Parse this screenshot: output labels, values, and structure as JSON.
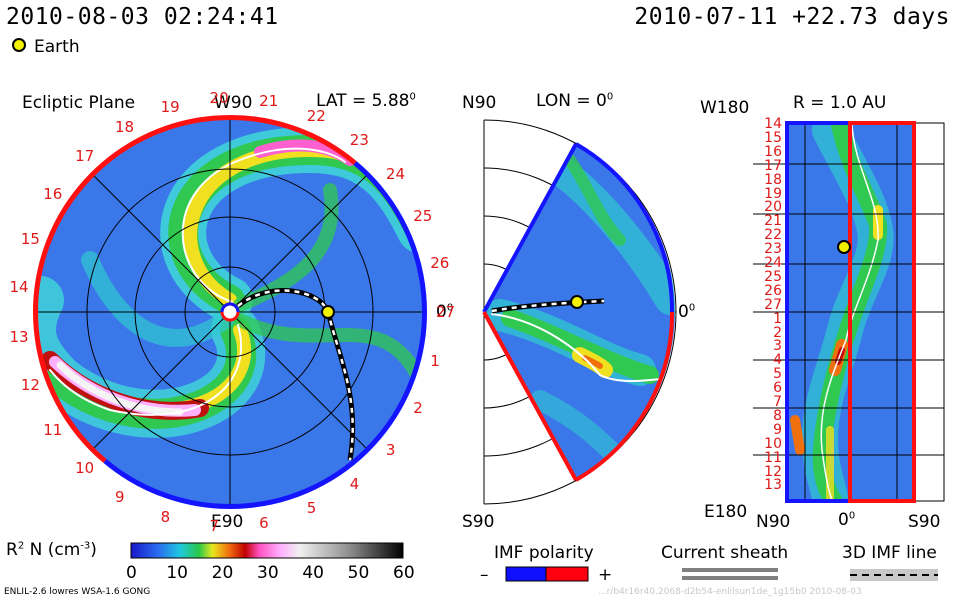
{
  "header": {
    "datetime": "2010-08-03 02:24:41",
    "reference": "2010-07-11 +22.73 days",
    "earth_legend": "Earth"
  },
  "panel_ecliptic": {
    "title": "Ecliptic Plane",
    "top_label": "W90",
    "bottom_label": "E90",
    "right_label": "0",
    "right_label_sup": "0",
    "lat_label": "LAT = 5.88",
    "lat_sup": "0",
    "carrington_labels": [
      "1",
      "2",
      "3",
      "4",
      "5",
      "6",
      "7",
      "8",
      "9",
      "10",
      "11",
      "12",
      "13",
      "14",
      "15",
      "16",
      "17",
      "18",
      "19",
      "20",
      "21",
      "22",
      "23",
      "24",
      "25",
      "26",
      "27"
    ]
  },
  "panel_meridional": {
    "top_label": "N90",
    "bottom_label": "S90",
    "right_label": "0",
    "right_label_sup": "0",
    "lon_label": "LON = 0",
    "lon_sup": "0"
  },
  "panel_radial": {
    "r_label": "R = 1.0 AU",
    "top_left_label": "W180",
    "bottom_left_label": "E180",
    "x_labels": [
      "N90",
      "0",
      "S90"
    ],
    "x_label_mid_sup": "0",
    "rotation_labels": [
      "14",
      "15",
      "16",
      "17",
      "18",
      "19",
      "20",
      "21",
      "22",
      "23",
      "24",
      "25",
      "26",
      "27",
      "1",
      "2",
      "3",
      "4",
      "5",
      "6",
      "7",
      "8",
      "9",
      "10",
      "11",
      "12",
      "13"
    ]
  },
  "colorbar": {
    "label": "R",
    "label_sup": "2",
    "label_rest": "N (cm",
    "label_unit_sup": "-3",
    "label_close": ")",
    "ticks": [
      "0",
      "10",
      "20",
      "30",
      "40",
      "50",
      "60"
    ]
  },
  "legends": {
    "imf_polarity": "IMF polarity",
    "minus": "–",
    "plus": "+",
    "current_sheath": "Current sheath",
    "imf_line": "3D IMF line",
    "colors": {
      "negative": "#1010ff",
      "positive": "#ff0010"
    }
  },
  "footer": {
    "model": "ENLIL-2.6 lowres WSA-1.6 GONG",
    "watermark": "...r/b4r16r40.2068-d2b54-enlilsun1de_1g15b0  2010-08-03"
  }
}
